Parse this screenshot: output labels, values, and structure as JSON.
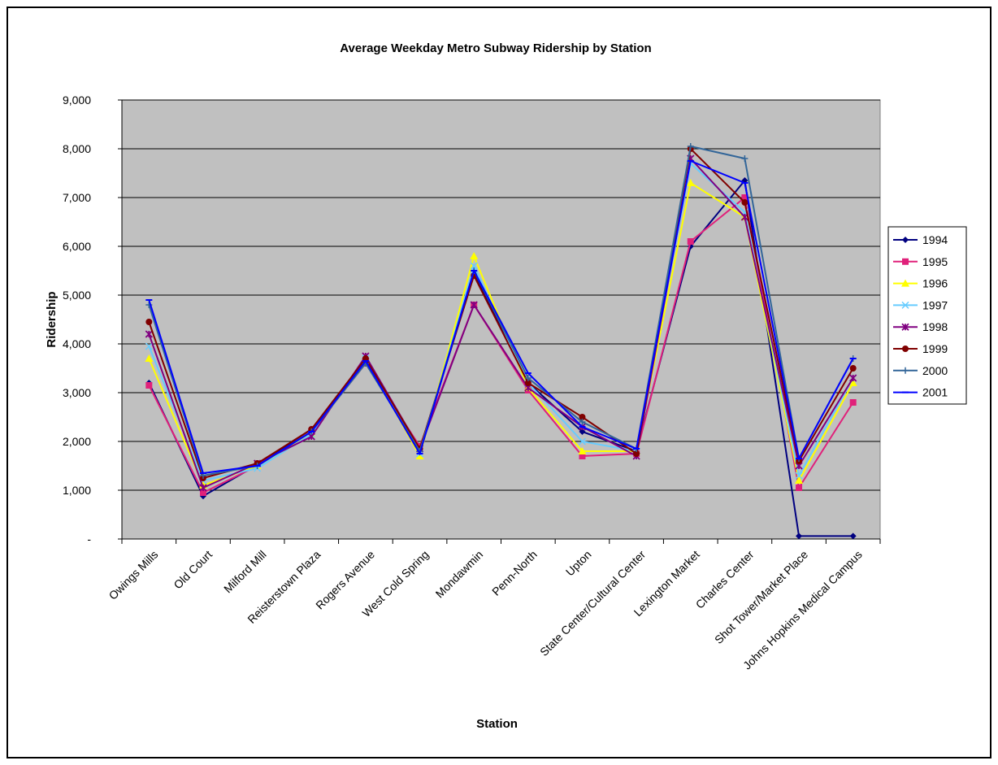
{
  "chart_data": {
    "type": "line",
    "title": "Average Weekday Metro Subway Ridership by Station",
    "xlabel": "Station",
    "ylabel": "Ridership",
    "ylim": [
      0,
      9000
    ],
    "yticks": [
      0,
      1000,
      2000,
      3000,
      4000,
      5000,
      6000,
      7000,
      8000,
      9000
    ],
    "ytick_labels": [
      "-",
      "1,000",
      "2,000",
      "3,000",
      "4,000",
      "5,000",
      "6,000",
      "7,000",
      "8,000",
      "9,000"
    ],
    "grid": true,
    "legend_position": "right",
    "plot_background": "#c0c0c0",
    "categories": [
      "Owings Mills",
      "Old Court",
      "Milford Mill",
      "Reisterstown Plaza",
      "Rogers Avenue",
      "West Cold Spring",
      "Mondawmin",
      "Penn-North",
      "Upton",
      "State Center/Cultural Center",
      "Lexington Market",
      "Charles Center",
      "Shot Tower/Market Place",
      "Johns Hopkins Medical Campus"
    ],
    "series": [
      {
        "name": "1994",
        "color": "#000080",
        "marker": "diamond",
        "values": [
          3200,
          880,
          1520,
          2250,
          3650,
          1800,
          5450,
          3200,
          2200,
          1800,
          6000,
          7350,
          60,
          60
        ]
      },
      {
        "name": "1995",
        "color": "#e0217a",
        "marker": "square",
        "values": [
          3150,
          950,
          1500,
          2200,
          3600,
          1900,
          4800,
          3050,
          1700,
          1750,
          6100,
          7000,
          1050,
          2800
        ]
      },
      {
        "name": "1996",
        "color": "#ffff00",
        "marker": "triangle",
        "values": [
          3700,
          1100,
          1500,
          2150,
          3700,
          1700,
          5800,
          3100,
          1800,
          1800,
          7300,
          6600,
          1200,
          3200
        ]
      },
      {
        "name": "1997",
        "color": "#66ccff",
        "marker": "x",
        "values": [
          3950,
          1200,
          1450,
          2150,
          3700,
          1750,
          5600,
          3200,
          2000,
          1800,
          7700,
          6700,
          1300,
          3300
        ]
      },
      {
        "name": "1998",
        "color": "#800080",
        "marker": "star",
        "values": [
          4200,
          1050,
          1550,
          2100,
          3750,
          1850,
          4800,
          3100,
          2300,
          1700,
          7800,
          6600,
          1500,
          3300
        ]
      },
      {
        "name": "1999",
        "color": "#800000",
        "marker": "circle",
        "values": [
          4450,
          1250,
          1550,
          2250,
          3700,
          1850,
          5400,
          3200,
          2500,
          1750,
          8000,
          6900,
          1600,
          3500
        ]
      },
      {
        "name": "2000",
        "color": "#336699",
        "marker": "plus",
        "values": [
          4800,
          1300,
          1500,
          2200,
          3600,
          1800,
          5500,
          3300,
          2400,
          1850,
          8050,
          7800,
          1650,
          3700
        ]
      },
      {
        "name": "2001",
        "color": "#0000ff",
        "marker": "dash",
        "values": [
          4900,
          1350,
          1500,
          2200,
          3650,
          1750,
          5500,
          3400,
          2300,
          1850,
          7750,
          7300,
          1650,
          3700
        ]
      }
    ]
  }
}
